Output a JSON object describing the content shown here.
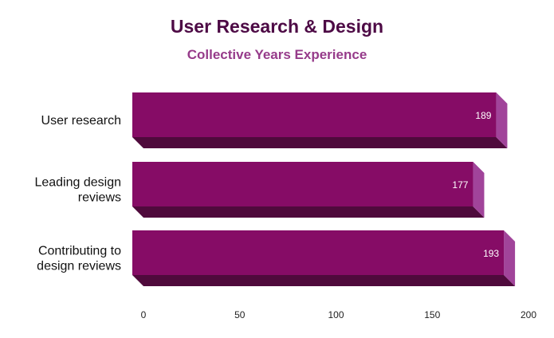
{
  "colors": {
    "bar_front": "#860c66",
    "bar_side": "#a1449a",
    "bar_bottom": "#4f0a3c",
    "title": "#4d0a45",
    "subtitle": "#963b8a"
  },
  "chart_data": {
    "type": "bar",
    "orientation": "horizontal",
    "style": "3d",
    "title": "User Research & Design",
    "subtitle": "Collective Years Experience",
    "categories": [
      [
        "User research"
      ],
      [
        "Leading design",
        "reviews"
      ],
      [
        "Contributing to",
        "design reviews"
      ]
    ],
    "values": [
      189,
      177,
      193
    ],
    "value_labels": [
      "189",
      "177",
      "193"
    ],
    "xlim": [
      0,
      200
    ],
    "xticks": [
      0,
      50,
      100,
      150,
      200
    ],
    "xtick_labels": [
      "0",
      "50",
      "100",
      "150",
      "200"
    ],
    "grid": false,
    "legend": "none"
  }
}
